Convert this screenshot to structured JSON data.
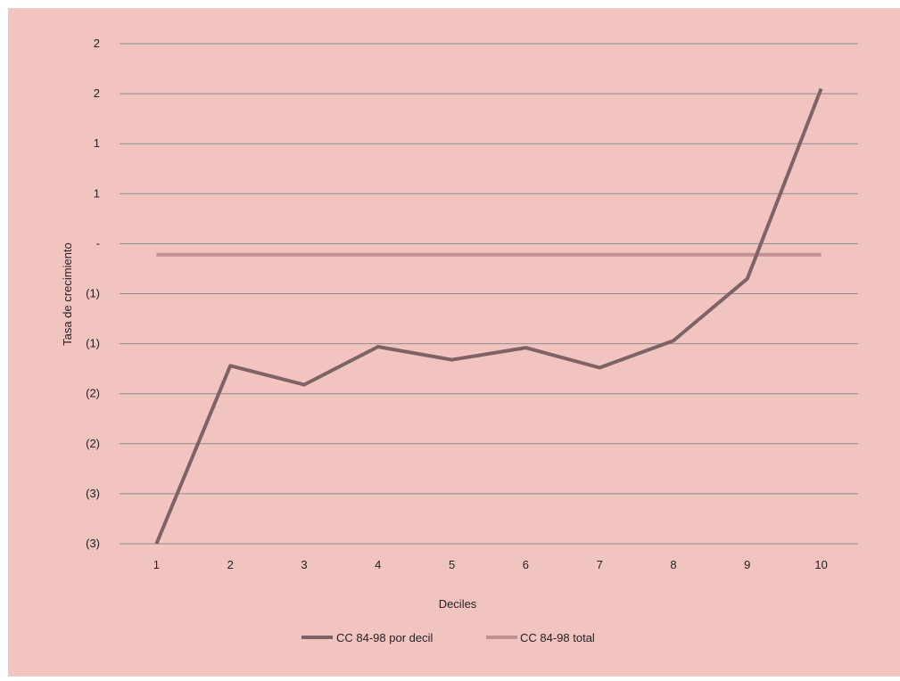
{
  "colors": {
    "background": "#f2c4c0",
    "grid": "#8c8c8c",
    "series_decil": "#7e6365",
    "series_total": "#c39092"
  },
  "chart_data": {
    "type": "line",
    "title": "",
    "xlabel": "Deciles",
    "ylabel": "Tasa de crecimiento",
    "x": [
      "1",
      "2",
      "3",
      "4",
      "5",
      "6",
      "7",
      "8",
      "9",
      "10"
    ],
    "ylim": [
      -3.0,
      2.0
    ],
    "y_ticks": [
      {
        "value": 2.0,
        "label": "2"
      },
      {
        "value": 1.5,
        "label": "2"
      },
      {
        "value": 1.0,
        "label": "1"
      },
      {
        "value": 0.5,
        "label": "1"
      },
      {
        "value": 0.0,
        "label": "-"
      },
      {
        "value": -0.5,
        "label": "(1)"
      },
      {
        "value": -1.0,
        "label": "(1)"
      },
      {
        "value": -1.5,
        "label": "(2)"
      },
      {
        "value": -2.0,
        "label": "(2)"
      },
      {
        "value": -2.5,
        "label": "(3)"
      },
      {
        "value": -3.0,
        "label": "(3)"
      }
    ],
    "grid": true,
    "legend_position": "bottom",
    "series": [
      {
        "name": "CC 84-98 por decil",
        "color": "#7e6365",
        "values": [
          -3.0,
          -1.22,
          -1.41,
          -1.03,
          -1.16,
          -1.04,
          -1.24,
          -0.97,
          -0.35,
          1.55
        ]
      },
      {
        "name": "CC 84-98 total",
        "color": "#c39092",
        "values": [
          -0.11,
          -0.11,
          -0.11,
          -0.11,
          -0.11,
          -0.11,
          -0.11,
          -0.11,
          -0.11,
          -0.11
        ]
      }
    ]
  }
}
